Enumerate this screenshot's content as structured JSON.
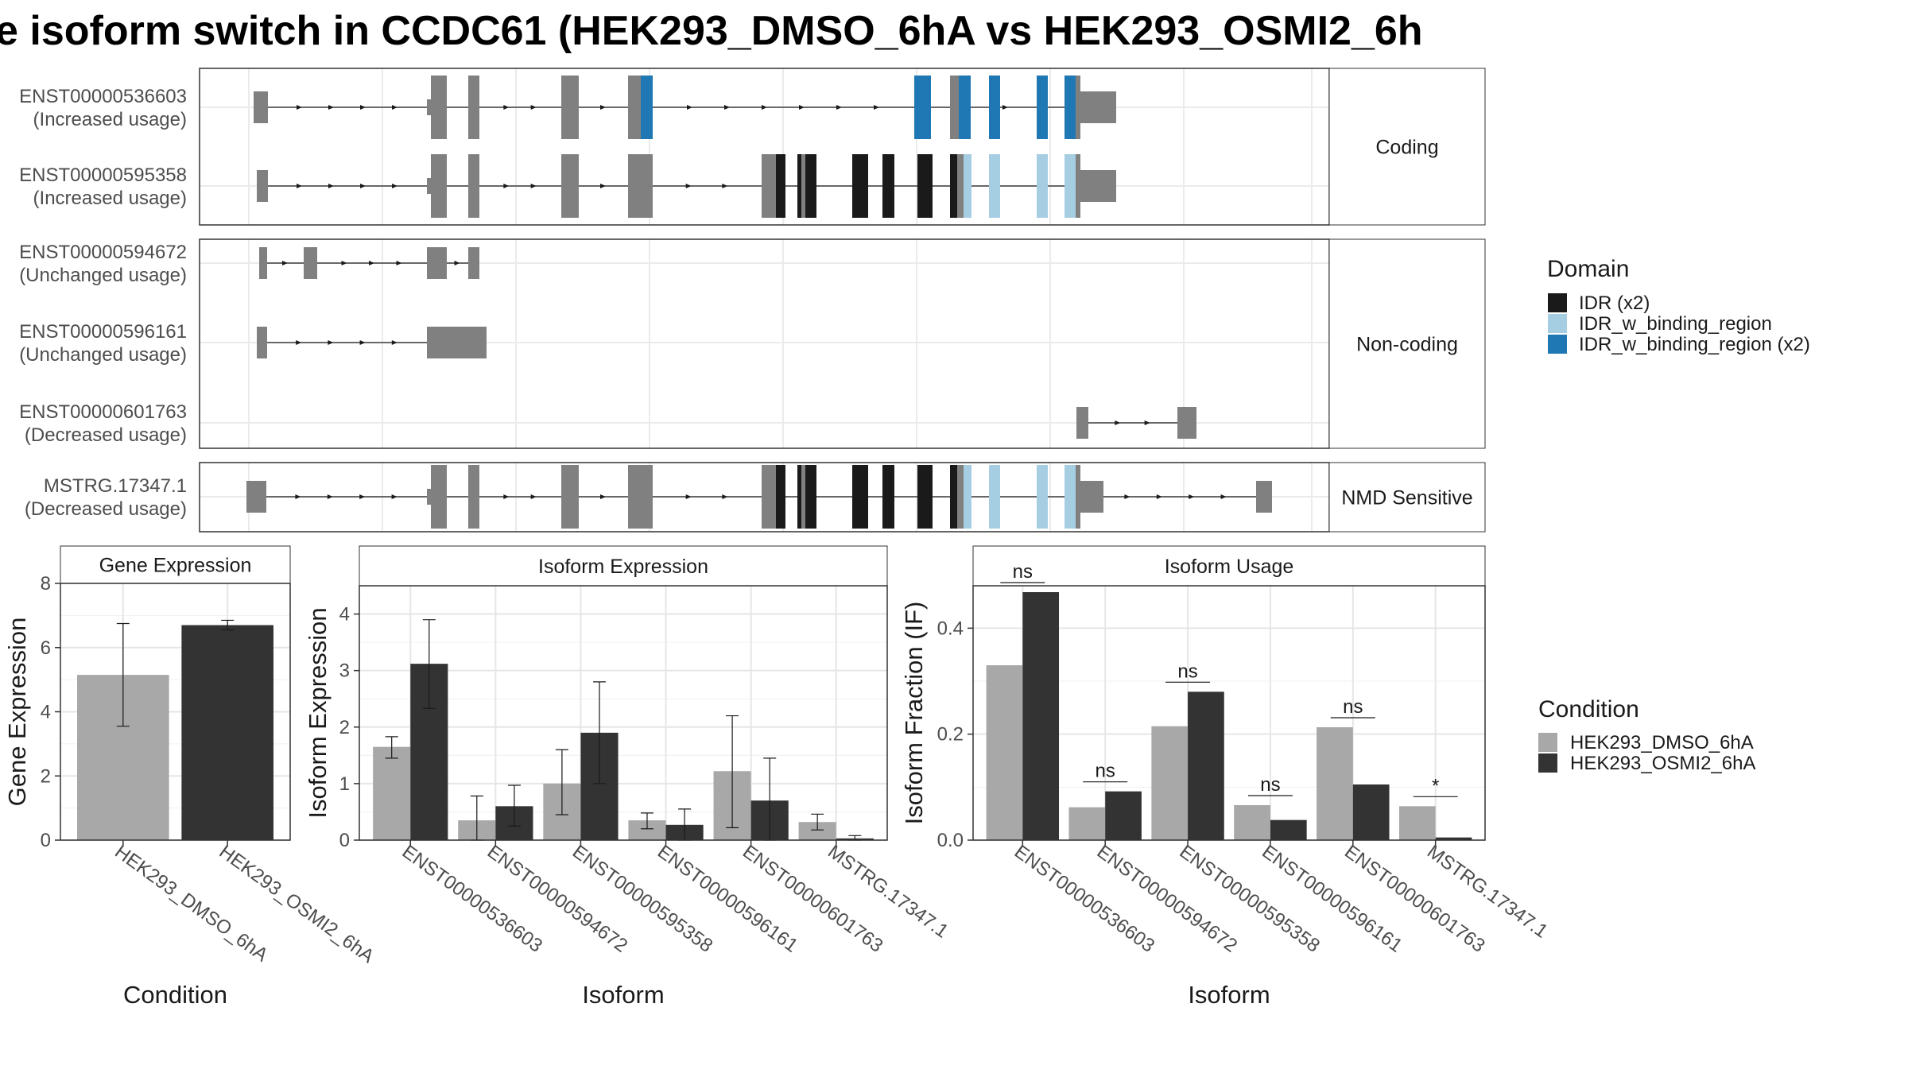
{
  "title": "e isoform switch in CCDC61 (HEK293_DMSO_6hA vs HEK293_OSMI2_6h",
  "colors": {
    "exon": "#808080",
    "idr": "#1a1a1a",
    "idr_w_binding_region": "#a6cee3",
    "idr_w_binding_region_x2": "#1f78b4",
    "dmso": "#a8a8a8",
    "osmi2": "#333333"
  },
  "structure": {
    "groups": [
      {
        "label": "Coding",
        "isoforms": [
          {
            "id": "ENST00000536603",
            "usage": "(Increased usage)"
          },
          {
            "id": "ENST00000595358",
            "usage": "(Increased usage)"
          }
        ]
      },
      {
        "label": "Non-coding",
        "isoforms": [
          {
            "id": "ENST00000594672",
            "usage": "(Unchanged usage)"
          },
          {
            "id": "ENST00000596161",
            "usage": "(Unchanged usage)"
          },
          {
            "id": "ENST00000601763",
            "usage": "(Decreased usage)"
          }
        ]
      },
      {
        "label": "NMD Sensitive",
        "isoforms": [
          {
            "id": "MSTRG.17347.1",
            "usage": "(Decreased usage)"
          }
        ]
      }
    ]
  },
  "domain_legend": {
    "title": "Domain",
    "items": [
      {
        "label": "IDR (x2)",
        "color": "#1a1a1a"
      },
      {
        "label": "IDR_w_binding_region",
        "color": "#a6cee3"
      },
      {
        "label": "IDR_w_binding_region (x2)",
        "color": "#1f78b4"
      }
    ]
  },
  "condition_legend": {
    "title": "Condition",
    "items": [
      {
        "label": "HEK293_DMSO_6hA",
        "color": "#a8a8a8"
      },
      {
        "label": "HEK293_OSMI2_6hA",
        "color": "#333333"
      }
    ]
  },
  "chart_data": [
    {
      "type": "bar",
      "title": "Gene Expression",
      "xlabel": "Condition",
      "ylabel": "Gene Expression",
      "ylim": [
        0,
        8
      ],
      "yticks": [
        "0",
        "2",
        "4",
        "6",
        "8"
      ],
      "categories": [
        "HEK293_DMSO_6hA",
        "HEK293_OSMI2_6hA"
      ],
      "values": [
        5.15,
        6.7
      ],
      "error_low": [
        3.55,
        6.55
      ],
      "error_high": [
        6.75,
        6.85
      ]
    },
    {
      "type": "bar",
      "title": "Isoform Expression",
      "xlabel": "Isoform",
      "ylabel": "Isoform Expression",
      "ylim": [
        0,
        4.5
      ],
      "yticks": [
        "0",
        "1",
        "2",
        "3",
        "4"
      ],
      "categories": [
        "ENST00000536603",
        "ENST00000594672",
        "ENST00000595358",
        "ENST00000596161",
        "ENST00000601763",
        "MSTRG.17347.1"
      ],
      "series": [
        {
          "name": "HEK293_DMSO_6hA",
          "values": [
            1.65,
            0.35,
            1.0,
            0.35,
            1.22,
            0.32
          ],
          "error_low": [
            1.45,
            0.0,
            0.45,
            0.2,
            0.22,
            0.18
          ],
          "error_high": [
            1.83,
            0.78,
            1.6,
            0.48,
            2.2,
            0.46
          ]
        },
        {
          "name": "HEK293_OSMI2_6hA",
          "values": [
            3.12,
            0.6,
            1.9,
            0.27,
            0.7,
            0.03
          ],
          "error_low": [
            2.33,
            0.25,
            1.0,
            0.0,
            0.0,
            0.0
          ],
          "error_high": [
            3.9,
            0.97,
            2.8,
            0.55,
            1.45,
            0.08
          ]
        }
      ]
    },
    {
      "type": "bar",
      "title": "Isoform Usage",
      "xlabel": "Isoform",
      "ylabel": "Isoform Fraction (IF)",
      "ylim": [
        0,
        0.48
      ],
      "yticks": [
        "0.0",
        "0.2",
        "0.4"
      ],
      "categories": [
        "ENST00000536603",
        "ENST00000594672",
        "ENST00000595358",
        "ENST00000596161",
        "ENST00000601763",
        "MSTRG.17347.1"
      ],
      "significance": [
        "ns",
        "ns",
        "ns",
        "ns",
        "ns",
        "*"
      ],
      "series": [
        {
          "name": "HEK293_DMSO_6hA",
          "values": [
            0.33,
            0.062,
            0.215,
            0.066,
            0.213,
            0.064
          ]
        },
        {
          "name": "HEK293_OSMI2_6hA",
          "values": [
            0.468,
            0.092,
            0.28,
            0.038,
            0.105,
            0.005
          ]
        }
      ]
    }
  ]
}
